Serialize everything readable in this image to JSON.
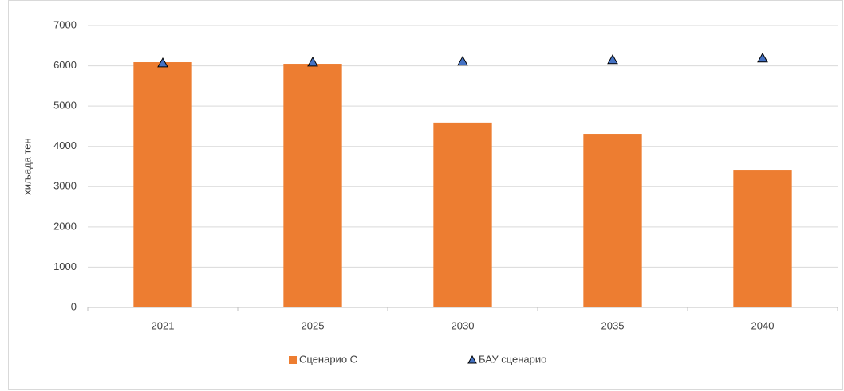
{
  "chart_data": {
    "type": "bar",
    "y_label": "хиљада тен",
    "categories": [
      "2021",
      "2025",
      "2030",
      "2035",
      "2040"
    ],
    "series": [
      {
        "name": "Сценарио С",
        "type": "bar",
        "color": "#ED7D31",
        "values": [
          6090,
          6050,
          4590,
          4310,
          3400
        ]
      },
      {
        "name": "БАУ сценарио",
        "type": "scatter",
        "marker": "triangle",
        "color": "#4472C4",
        "values": [
          6070,
          6090,
          6110,
          6150,
          6190
        ]
      }
    ],
    "ylim": [
      0,
      7000
    ],
    "yticks": [
      0,
      1000,
      2000,
      3000,
      4000,
      5000,
      6000,
      7000
    ],
    "grid": true,
    "legend": "bottom"
  }
}
